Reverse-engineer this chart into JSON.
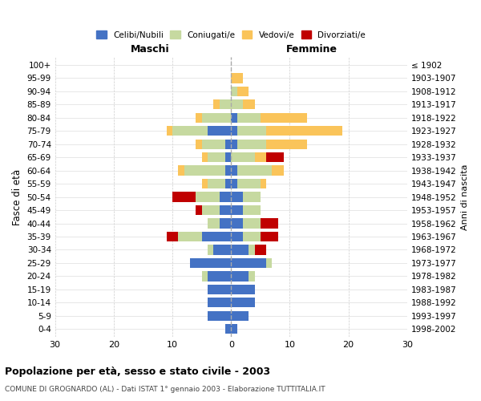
{
  "age_groups": [
    "0-4",
    "5-9",
    "10-14",
    "15-19",
    "20-24",
    "25-29",
    "30-34",
    "35-39",
    "40-44",
    "45-49",
    "50-54",
    "55-59",
    "60-64",
    "65-69",
    "70-74",
    "75-79",
    "80-84",
    "85-89",
    "90-94",
    "95-99",
    "100+"
  ],
  "birth_years": [
    "1998-2002",
    "1993-1997",
    "1988-1992",
    "1983-1987",
    "1978-1982",
    "1973-1977",
    "1968-1972",
    "1963-1967",
    "1958-1962",
    "1953-1957",
    "1948-1952",
    "1943-1947",
    "1938-1942",
    "1933-1937",
    "1928-1932",
    "1923-1927",
    "1918-1922",
    "1913-1917",
    "1908-1912",
    "1903-1907",
    "≤ 1902"
  ],
  "maschi": {
    "celibi": [
      1,
      4,
      4,
      4,
      4,
      7,
      3,
      5,
      2,
      2,
      2,
      1,
      1,
      1,
      1,
      4,
      0,
      0,
      0,
      0,
      0
    ],
    "coniugati": [
      0,
      0,
      0,
      0,
      1,
      0,
      1,
      4,
      2,
      3,
      4,
      3,
      7,
      3,
      4,
      6,
      5,
      2,
      0,
      0,
      0
    ],
    "vedovi": [
      0,
      0,
      0,
      0,
      0,
      0,
      0,
      0,
      0,
      0,
      0,
      1,
      1,
      1,
      1,
      1,
      1,
      1,
      0,
      0,
      0
    ],
    "divorziati": [
      0,
      0,
      0,
      0,
      0,
      0,
      0,
      2,
      0,
      1,
      4,
      0,
      0,
      0,
      0,
      0,
      0,
      0,
      0,
      0,
      0
    ]
  },
  "femmine": {
    "nubili": [
      1,
      3,
      4,
      4,
      3,
      6,
      3,
      2,
      2,
      2,
      2,
      1,
      1,
      0,
      1,
      1,
      1,
      0,
      0,
      0,
      0
    ],
    "coniugate": [
      0,
      0,
      0,
      0,
      1,
      1,
      1,
      3,
      3,
      3,
      3,
      4,
      6,
      4,
      5,
      5,
      4,
      2,
      1,
      0,
      0
    ],
    "vedove": [
      0,
      0,
      0,
      0,
      0,
      0,
      0,
      0,
      0,
      0,
      0,
      1,
      2,
      2,
      7,
      13,
      8,
      2,
      2,
      2,
      0
    ],
    "divorziate": [
      0,
      0,
      0,
      0,
      0,
      0,
      2,
      3,
      3,
      0,
      0,
      0,
      0,
      3,
      0,
      0,
      0,
      0,
      0,
      0,
      0
    ]
  },
  "colors": {
    "celibi_nubili": "#4472C4",
    "coniugati": "#C6D9A0",
    "vedovi": "#FAC45A",
    "divorziati": "#C00000"
  },
  "xlim": 30,
  "title": "Popolazione per età, sesso e stato civile - 2003",
  "subtitle": "COMUNE DI GROGNARDO (AL) - Dati ISTAT 1° gennaio 2003 - Elaborazione TUTTITALIA.IT",
  "ylabel_left": "Fasce di età",
  "ylabel_right": "Anni di nascita",
  "xlabel_maschi": "Maschi",
  "xlabel_femmine": "Femmine"
}
